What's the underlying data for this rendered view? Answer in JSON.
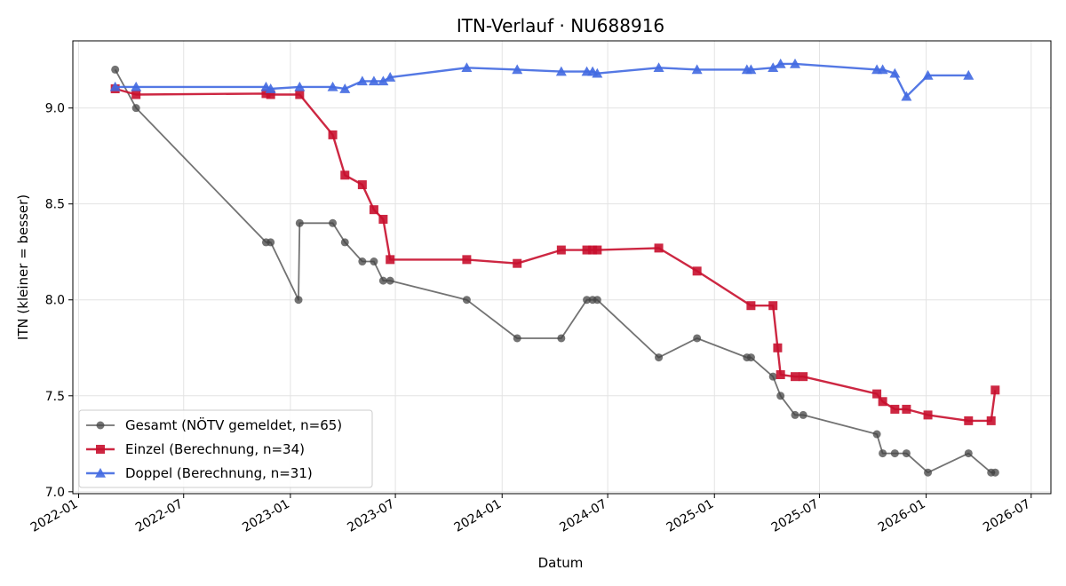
{
  "chart_data": {
    "type": "line",
    "title": "ITN-Verlauf · NU688916",
    "xlabel": "Datum",
    "ylabel": "ITN  (kleiner = besser)",
    "x_ticks": [
      "2022-01",
      "2022-07",
      "2023-01",
      "2023-07",
      "2024-01",
      "2024-07",
      "2025-01",
      "2025-07",
      "2026-01",
      "2026-07"
    ],
    "y_ticks": [
      "7.0",
      "7.5",
      "8.0",
      "8.5",
      "9.0"
    ],
    "xlim": [
      "2021-12-22",
      "2026-08-04"
    ],
    "ylim": [
      6.99,
      9.35
    ],
    "grid": true,
    "legend_position": "lower-left",
    "series": [
      {
        "name": "Gesamt (NÖTV gemeldet, n=65)",
        "color": "#444444",
        "marker": "circle",
        "points": [
          [
            "2022-03-05",
            9.2
          ],
          [
            "2022-04-10",
            9.0
          ],
          [
            "2022-11-20",
            8.3
          ],
          [
            "2022-11-28",
            8.3
          ],
          [
            "2023-01-15",
            8.0
          ],
          [
            "2023-01-17",
            8.4
          ],
          [
            "2023-03-15",
            8.4
          ],
          [
            "2023-04-05",
            8.3
          ],
          [
            "2023-05-05",
            8.2
          ],
          [
            "2023-05-25",
            8.2
          ],
          [
            "2023-06-10",
            8.1
          ],
          [
            "2023-06-22",
            8.1
          ],
          [
            "2023-11-01",
            8.0
          ],
          [
            "2024-01-27",
            7.8
          ],
          [
            "2024-04-12",
            7.8
          ],
          [
            "2024-05-26",
            8.0
          ],
          [
            "2024-06-05",
            8.0
          ],
          [
            "2024-06-13",
            8.0
          ],
          [
            "2024-09-27",
            7.7
          ],
          [
            "2024-12-02",
            7.8
          ],
          [
            "2025-02-26",
            7.7
          ],
          [
            "2025-03-05",
            7.7
          ],
          [
            "2025-04-12",
            7.6
          ],
          [
            "2025-04-25",
            7.5
          ],
          [
            "2025-05-20",
            7.4
          ],
          [
            "2025-06-03",
            7.4
          ],
          [
            "2025-10-08",
            7.3
          ],
          [
            "2025-10-18",
            7.2
          ],
          [
            "2025-11-08",
            7.2
          ],
          [
            "2025-11-28",
            7.2
          ],
          [
            "2026-01-04",
            7.1
          ],
          [
            "2026-03-15",
            7.2
          ],
          [
            "2026-04-23",
            7.1
          ],
          [
            "2026-04-30",
            7.1
          ]
        ]
      },
      {
        "name": "Einzel (Berechnung, n=34)",
        "color": "#c8102e",
        "marker": "square",
        "points": [
          [
            "2022-03-05",
            9.1
          ],
          [
            "2022-04-10",
            9.07
          ],
          [
            "2022-11-20",
            9.075
          ],
          [
            "2022-11-28",
            9.07
          ],
          [
            "2023-01-17",
            9.07
          ],
          [
            "2023-03-15",
            8.86
          ],
          [
            "2023-04-05",
            8.65
          ],
          [
            "2023-05-05",
            8.6
          ],
          [
            "2023-05-25",
            8.47
          ],
          [
            "2023-06-10",
            8.42
          ],
          [
            "2023-06-22",
            8.21
          ],
          [
            "2023-11-01",
            8.21
          ],
          [
            "2024-01-27",
            8.19
          ],
          [
            "2024-04-12",
            8.26
          ],
          [
            "2024-05-26",
            8.26
          ],
          [
            "2024-06-05",
            8.26
          ],
          [
            "2024-06-13",
            8.26
          ],
          [
            "2024-09-27",
            8.27
          ],
          [
            "2024-12-02",
            8.15
          ],
          [
            "2025-03-05",
            7.97
          ],
          [
            "2025-04-12",
            7.97
          ],
          [
            "2025-04-20",
            7.75
          ],
          [
            "2025-04-25",
            7.61
          ],
          [
            "2025-05-20",
            7.6
          ],
          [
            "2025-06-03",
            7.6
          ],
          [
            "2025-10-08",
            7.51
          ],
          [
            "2025-10-18",
            7.47
          ],
          [
            "2025-11-08",
            7.43
          ],
          [
            "2025-11-28",
            7.43
          ],
          [
            "2026-01-04",
            7.4
          ],
          [
            "2026-03-15",
            7.37
          ],
          [
            "2026-04-23",
            7.37
          ],
          [
            "2026-04-30",
            7.53
          ]
        ]
      },
      {
        "name": "Doppel (Berechnung, n=31)",
        "color": "#4169e1",
        "marker": "triangle",
        "points": [
          [
            "2022-03-05",
            9.11
          ],
          [
            "2022-04-10",
            9.11
          ],
          [
            "2022-11-20",
            9.11
          ],
          [
            "2022-11-28",
            9.1
          ],
          [
            "2023-01-17",
            9.11
          ],
          [
            "2023-03-15",
            9.11
          ],
          [
            "2023-04-05",
            9.1
          ],
          [
            "2023-05-05",
            9.14
          ],
          [
            "2023-05-25",
            9.14
          ],
          [
            "2023-06-10",
            9.14
          ],
          [
            "2023-06-22",
            9.16
          ],
          [
            "2023-11-01",
            9.21
          ],
          [
            "2024-01-27",
            9.2
          ],
          [
            "2024-04-12",
            9.19
          ],
          [
            "2024-05-26",
            9.19
          ],
          [
            "2024-06-05",
            9.19
          ],
          [
            "2024-06-13",
            9.18
          ],
          [
            "2024-09-27",
            9.21
          ],
          [
            "2024-12-02",
            9.2
          ],
          [
            "2025-02-26",
            9.2
          ],
          [
            "2025-03-05",
            9.2
          ],
          [
            "2025-04-12",
            9.21
          ],
          [
            "2025-04-25",
            9.23
          ],
          [
            "2025-05-20",
            9.23
          ],
          [
            "2025-10-08",
            9.2
          ],
          [
            "2025-10-18",
            9.2
          ],
          [
            "2025-11-08",
            9.18
          ],
          [
            "2025-11-28",
            9.06
          ],
          [
            "2026-01-04",
            9.17
          ],
          [
            "2026-03-15",
            9.17
          ]
        ]
      }
    ]
  }
}
